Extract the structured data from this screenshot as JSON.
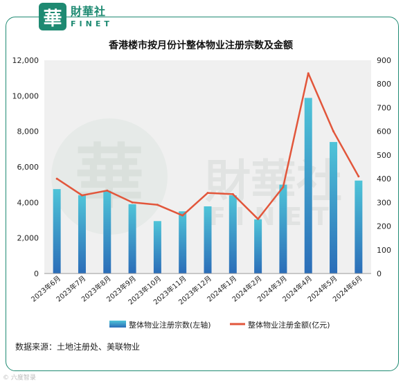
{
  "brand": {
    "seal_char": "華",
    "name_cn": "財華社",
    "name_en": "FINET"
  },
  "watermark": {
    "seal_char": "華",
    "name_cn": "財華社",
    "name_en": "FINET"
  },
  "footer": {
    "mark": "© 六度智录"
  },
  "colors": {
    "frame": "#1e8a72",
    "plot_bg": "#f0f0f0",
    "bar_top": "#4fc4d8",
    "bar_bottom": "#2b6db8",
    "line": "#e2563b"
  },
  "chart_data": {
    "type": "bar",
    "title": "香港楼市按月份计整体物业注册宗数及金额",
    "categories": [
      "2023年6月",
      "2023年7月",
      "2023年8月",
      "2023年9月",
      "2023年10月",
      "2023年11月",
      "2023年12月",
      "2024年1月",
      "2024年2月",
      "2024年3月",
      "2024年4月",
      "2024年5月",
      "2024年6月"
    ],
    "y_left": {
      "min": 0,
      "max": 12000,
      "step": 2000,
      "tick_labels": [
        "0",
        "2,000",
        "4,000",
        "6,000",
        "8,000",
        "10,000",
        "12,000"
      ]
    },
    "y_right": {
      "min": 0,
      "max": 900,
      "step": 100,
      "tick_labels": [
        "0",
        "100",
        "200",
        "300",
        "400",
        "500",
        "600",
        "700",
        "800",
        "900"
      ]
    },
    "grid": false,
    "legend_position": "bottom",
    "series": [
      {
        "name": "整体物业注册宗数(左轴)",
        "type": "bar",
        "axis": "left",
        "values": [
          4750,
          4400,
          4650,
          3900,
          2950,
          3500,
          3780,
          4400,
          3050,
          5000,
          9880,
          7400,
          5230
        ]
      },
      {
        "name": "整体物业注册金额(亿元)",
        "type": "line",
        "axis": "right",
        "values": [
          400,
          330,
          350,
          300,
          290,
          245,
          340,
          335,
          230,
          365,
          845,
          600,
          410
        ]
      }
    ],
    "source": "数据来源：土地注册处、美联物业"
  }
}
